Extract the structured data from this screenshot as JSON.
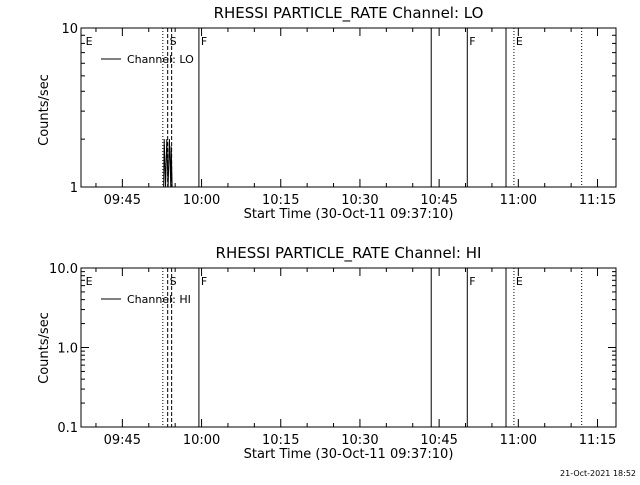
{
  "chart_data": [
    {
      "type": "line",
      "title": "RHESSI PARTICLE_RATE Channel: LO",
      "xlabel": "Start Time (30-Oct-11 09:37:10)",
      "ylabel": "Counts/sec",
      "y_scale": "log",
      "ylim": [
        1,
        10
      ],
      "xlim": [
        "09:37:10",
        "11:18:30"
      ],
      "x_ticks": [
        "09:45",
        "10:00",
        "10:15",
        "10:30",
        "10:45",
        "11:00",
        "11:15"
      ],
      "y_ticks": [
        "1",
        "10"
      ],
      "legend": {
        "placement": "top-left",
        "entries": [
          "Channel: LO"
        ]
      },
      "grid": false,
      "series": [
        {
          "name": "Channel: LO",
          "points": [
            [
              "09:52:50",
              1
            ],
            [
              "09:52:55",
              2
            ],
            [
              "09:53:10",
              1
            ],
            [
              "09:53:25",
              2
            ],
            [
              "09:53:40",
              1
            ],
            [
              "09:53:55",
              2
            ],
            [
              "09:54:10",
              1
            ],
            [
              "09:54:15",
              1.8
            ],
            [
              "09:54:25",
              1
            ]
          ]
        }
      ],
      "event_lines": [
        {
          "time": "09:37:40",
          "label": "E",
          "style": "none"
        },
        {
          "time": "09:52:40",
          "label": "",
          "style": "dotted"
        },
        {
          "time": "09:53:35",
          "label": "S",
          "style": "dashed"
        },
        {
          "time": "09:54:20",
          "label": "",
          "style": "dashed"
        },
        {
          "time": "09:59:30",
          "label": "F",
          "style": "solid"
        },
        {
          "time": "10:43:30",
          "label": "",
          "style": "solid"
        },
        {
          "time": "10:50:20",
          "label": "F",
          "style": "solid"
        },
        {
          "time": "10:57:40",
          "label": "",
          "style": "solid"
        },
        {
          "time": "10:59:10",
          "label": "E",
          "style": "dotted"
        },
        {
          "time": "11:12:00",
          "label": "",
          "style": "dotted"
        }
      ]
    },
    {
      "type": "line",
      "title": "RHESSI PARTICLE_RATE Channel: HI",
      "xlabel": "Start Time (30-Oct-11 09:37:10)",
      "ylabel": "Counts/sec",
      "y_scale": "log",
      "ylim": [
        0.1,
        10
      ],
      "xlim": [
        "09:37:10",
        "11:18:30"
      ],
      "x_ticks": [
        "09:45",
        "10:00",
        "10:15",
        "10:30",
        "10:45",
        "11:00",
        "11:15"
      ],
      "y_ticks": [
        "0.1",
        "1.0",
        "10.0"
      ],
      "legend": {
        "placement": "top-left",
        "entries": [
          "Channel: HI"
        ]
      },
      "grid": false,
      "series": [
        {
          "name": "Channel: HI",
          "points": []
        }
      ],
      "event_lines": [
        {
          "time": "09:37:40",
          "label": "E",
          "style": "none"
        },
        {
          "time": "09:52:40",
          "label": "",
          "style": "dotted"
        },
        {
          "time": "09:53:35",
          "label": "S",
          "style": "dashed"
        },
        {
          "time": "09:54:20",
          "label": "",
          "style": "dashed"
        },
        {
          "time": "09:59:30",
          "label": "F",
          "style": "solid"
        },
        {
          "time": "10:43:30",
          "label": "",
          "style": "solid"
        },
        {
          "time": "10:50:20",
          "label": "F",
          "style": "solid"
        },
        {
          "time": "10:57:40",
          "label": "",
          "style": "solid"
        },
        {
          "time": "10:59:10",
          "label": "E",
          "style": "dotted"
        },
        {
          "time": "11:12:00",
          "label": "",
          "style": "dotted"
        }
      ]
    }
  ],
  "footer": {
    "timestamp": "21-Oct-2021 18:52"
  }
}
